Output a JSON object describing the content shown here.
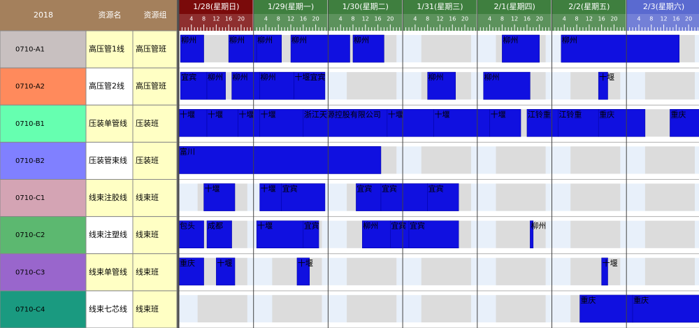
{
  "header": {
    "year": "2018",
    "name_col": "资源名",
    "group_col": "资源组"
  },
  "days": [
    "1/28(星期日)",
    "1/29(星期一)",
    "1/30(星期二)",
    "1/31(星期三)",
    "2/1(星期四)",
    "2/2(星期五)",
    "2/3(星期六)"
  ],
  "day_colors": [
    "#7a0a0a",
    "#3f7f3f",
    "#3f7f3f",
    "#3f7f3f",
    "#3f7f3f",
    "#3f7f3f",
    "#5a6ad0"
  ],
  "hours": [
    4,
    8,
    12,
    16,
    20
  ],
  "rows": [
    {
      "id": "0710-A1",
      "name": "高压管1线",
      "group": "高压管班",
      "color": "#c8c0c0",
      "tasks": [
        {
          "start": 0.5,
          "end": 8,
          "label": "柳州"
        },
        {
          "start": 16,
          "end": 25,
          "label": "柳州"
        },
        {
          "start": 25,
          "end": 33,
          "label": "柳州"
        },
        {
          "start": 36,
          "end": 55,
          "label": "柳州"
        },
        {
          "start": 56,
          "end": 66,
          "label": "柳州"
        },
        {
          "start": 104,
          "end": 116,
          "label": "柳州"
        },
        {
          "start": 123,
          "end": 161,
          "label": "柳州"
        }
      ]
    },
    {
      "id": "0710-A2",
      "name": "高压管2线",
      "group": "高压管班",
      "color": "#ff8a5c",
      "tasks": [
        {
          "start": 0.5,
          "end": 9,
          "label": "宜宾"
        },
        {
          "start": 9,
          "end": 15,
          "label": "柳州"
        },
        {
          "start": 17,
          "end": 26,
          "label": "柳州"
        },
        {
          "start": 26,
          "end": 37,
          "label": "柳州"
        },
        {
          "start": 37,
          "end": 47,
          "label": "十堰宜宾"
        },
        {
          "start": 80,
          "end": 89,
          "label": "柳州"
        },
        {
          "start": 98,
          "end": 113,
          "label": "柳州"
        },
        {
          "start": 135,
          "end": 138,
          "label": "十堰"
        }
      ]
    },
    {
      "id": "0710-B1",
      "name": "压装单管线",
      "group": "压装班",
      "color": "#66ffb0",
      "tasks": [
        {
          "start": 0,
          "end": 9,
          "label": "十堰"
        },
        {
          "start": 9,
          "end": 19,
          "label": "十堰"
        },
        {
          "start": 19,
          "end": 26,
          "label": "十堰"
        },
        {
          "start": 26,
          "end": 40,
          "label": "十堰"
        },
        {
          "start": 40,
          "end": 67,
          "label": "浙江天源控股有限公司"
        },
        {
          "start": 67,
          "end": 82,
          "label": "十堰"
        },
        {
          "start": 82,
          "end": 100,
          "label": "十堰"
        },
        {
          "start": 100,
          "end": 110,
          "label": "十堰"
        },
        {
          "start": 112,
          "end": 122,
          "label": "江铃重"
        },
        {
          "start": 122,
          "end": 135,
          "label": "江铃重"
        },
        {
          "start": 135,
          "end": 150,
          "label": "重庆"
        },
        {
          "start": 158,
          "end": 168,
          "label": "重庆"
        }
      ]
    },
    {
      "id": "0710-B2",
      "name": "压装管束线",
      "group": "压装班",
      "color": "#8080ff",
      "tasks": [
        {
          "start": 0,
          "end": 65,
          "label": "富川"
        }
      ]
    },
    {
      "id": "0710-C1",
      "name": "线束注胶线",
      "group": "线束班",
      "color": "#d4a4b4",
      "tasks": [
        {
          "start": 8,
          "end": 18,
          "label": "十堰"
        },
        {
          "start": 26,
          "end": 33,
          "label": "十堰"
        },
        {
          "start": 33,
          "end": 47,
          "label": "宜宾"
        },
        {
          "start": 57,
          "end": 65,
          "label": "宜宾"
        },
        {
          "start": 65,
          "end": 80,
          "label": "宜宾"
        },
        {
          "start": 80,
          "end": 90,
          "label": "宜宾"
        }
      ]
    },
    {
      "id": "0710-C2",
      "name": "线束注塑线",
      "group": "线束班",
      "color": "#5cb870",
      "tasks": [
        {
          "start": 0,
          "end": 8,
          "label": "包头"
        },
        {
          "start": 9,
          "end": 17,
          "label": "成都"
        },
        {
          "start": 25,
          "end": 40,
          "label": "十堰"
        },
        {
          "start": 40,
          "end": 45,
          "label": "宜宾"
        },
        {
          "start": 59,
          "end": 68,
          "label": "柳州"
        },
        {
          "start": 68,
          "end": 74,
          "label": "宜宾"
        },
        {
          "start": 74,
          "end": 90,
          "label": "宜宾"
        },
        {
          "start": 113,
          "end": 114,
          "label": "柳州"
        }
      ]
    },
    {
      "id": "0710-C3",
      "name": "线束单管线",
      "group": "线束班",
      "color": "#9966cc",
      "tasks": [
        {
          "start": 0,
          "end": 8,
          "label": "重庆"
        },
        {
          "start": 12,
          "end": 18,
          "label": "十堰"
        },
        {
          "start": 38,
          "end": 42,
          "label": "十堰"
        },
        {
          "start": 136,
          "end": 138,
          "label": "十堰"
        }
      ]
    },
    {
      "id": "0710-C4",
      "name": "线束七芯线",
      "group": "线束班",
      "color": "#1a9a80",
      "tasks": [
        {
          "start": 129,
          "end": 146,
          "label": "重庆"
        },
        {
          "start": 146,
          "end": 168,
          "label": "重庆"
        }
      ]
    }
  ]
}
